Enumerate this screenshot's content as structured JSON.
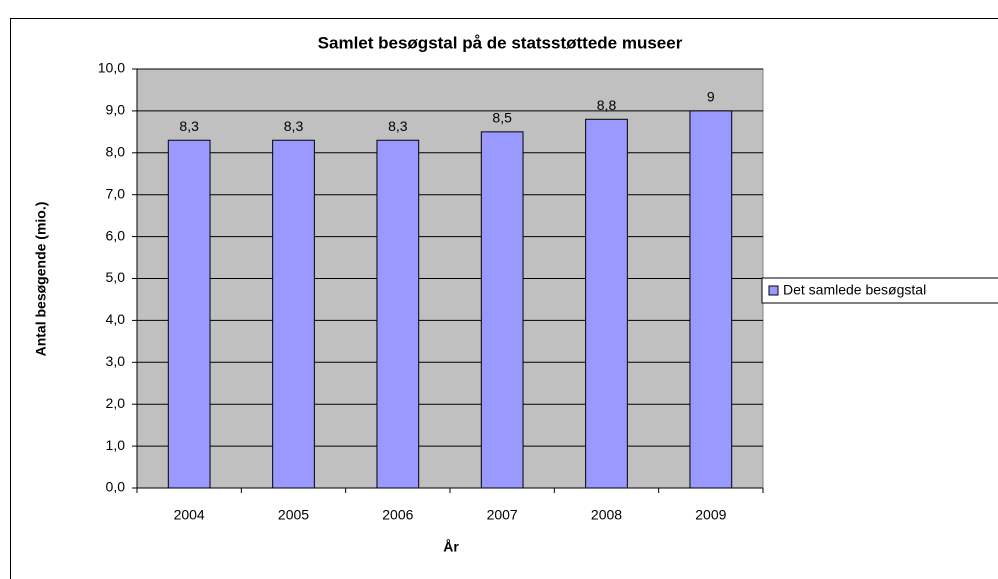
{
  "chart_data": {
    "type": "bar",
    "title": "Samlet besøgstal på de statsstøttede museer",
    "x_label": "År",
    "y_label": "Antal besøgende (mio.)",
    "categories": [
      "2004",
      "2005",
      "2006",
      "2007",
      "2008",
      "2009"
    ],
    "series": [
      {
        "name": "Det samlede besøgstal",
        "color": "#9999ff",
        "values": [
          8.3,
          8.3,
          8.3,
          8.5,
          8.8,
          9
        ],
        "value_labels": [
          "8,3",
          "8,3",
          "8,3",
          "8,5",
          "8,8",
          "9"
        ]
      }
    ],
    "ylim": [
      0,
      10
    ],
    "yticks": [
      {
        "value": 0,
        "label": "0,0"
      },
      {
        "value": 1,
        "label": "1,0"
      },
      {
        "value": 2,
        "label": "2,0"
      },
      {
        "value": 3,
        "label": "3,0"
      },
      {
        "value": 4,
        "label": "4,0"
      },
      {
        "value": 5,
        "label": "5,0"
      },
      {
        "value": 6,
        "label": "6,0"
      },
      {
        "value": 7,
        "label": "7,0"
      },
      {
        "value": 8,
        "label": "8,0"
      },
      {
        "value": 9,
        "label": "9,0"
      },
      {
        "value": 10,
        "label": "10,0"
      }
    ],
    "grid": true,
    "legend": "right"
  }
}
